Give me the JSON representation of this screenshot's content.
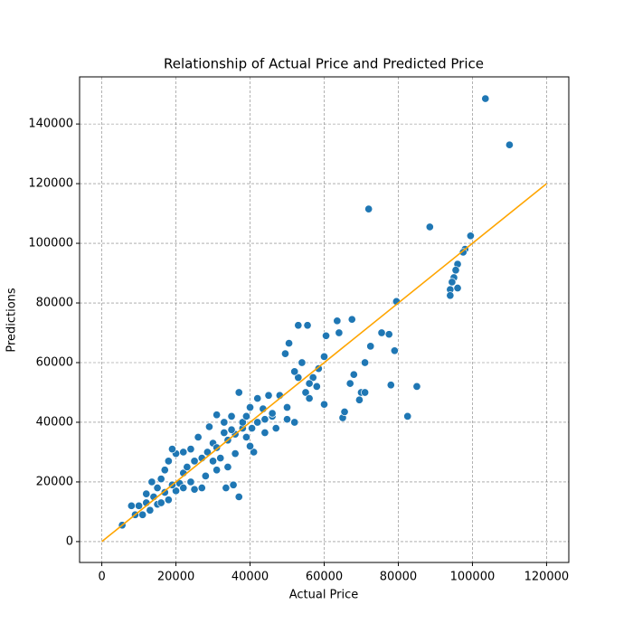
{
  "chart_data": {
    "type": "scatter",
    "title": "Relationship of Actual Price and Predicted Price",
    "x_label": "Actual Price",
    "y_label": "Predictions",
    "xlim": [
      -6000,
      126000
    ],
    "ylim": [
      -7000,
      155800
    ],
    "xticks": [
      0,
      20000,
      40000,
      60000,
      80000,
      100000,
      120000
    ],
    "yticks": [
      0,
      20000,
      40000,
      60000,
      80000,
      100000,
      120000,
      140000
    ],
    "grid": true,
    "points": {
      "color": "#1f77b4",
      "x": [
        5500,
        37000,
        72000,
        88500,
        103500,
        110000,
        99500,
        98000,
        97500,
        96000,
        95500,
        95000,
        94500,
        94000,
        94000,
        96000,
        79500,
        82500,
        85000,
        78000,
        79000,
        77500,
        75500,
        72500,
        71000,
        70000,
        69500,
        71000,
        68000,
        67000,
        65000,
        65500,
        64000,
        63500,
        67500,
        60500,
        53000,
        55500,
        50500,
        49500,
        60000,
        60000,
        58500,
        57000,
        55000,
        56000,
        52000,
        50000,
        50000,
        48000,
        45000,
        42000,
        43500,
        40000,
        41000,
        40000,
        37000,
        35000,
        33000,
        31000,
        29000,
        30000,
        32000,
        34000,
        36000,
        35500,
        33500,
        31000,
        28000,
        27000,
        25000,
        26000,
        24000,
        22000,
        20000,
        19000,
        18000,
        17000,
        16000,
        15000,
        14000,
        12000,
        11000,
        10000,
        9000,
        8000,
        13000,
        15000,
        18000,
        20000,
        21000,
        22000,
        23000,
        25000,
        27000,
        28500,
        36000,
        38000,
        39000,
        42000,
        44000,
        46000,
        47000,
        53000,
        54000,
        52000,
        56000,
        58000,
        44000,
        38000,
        39000,
        40500,
        46000,
        30000,
        31000,
        34000,
        35000,
        33000,
        24000,
        22000,
        19000,
        17000,
        12000,
        13500,
        16000
      ],
      "values": [
        5500,
        15000,
        111500,
        105500,
        148500,
        133000,
        102500,
        98000,
        97000,
        93000,
        91000,
        88500,
        87000,
        84500,
        82500,
        85000,
        80500,
        42000,
        52000,
        52500,
        64000,
        69500,
        70000,
        65500,
        60000,
        50000,
        47500,
        50000,
        56000,
        53000,
        41500,
        43500,
        70000,
        74000,
        74500,
        69000,
        72500,
        72500,
        66500,
        63000,
        46000,
        62000,
        58000,
        55000,
        50000,
        48000,
        40000,
        41000,
        45000,
        49000,
        49000,
        48000,
        44500,
        45000,
        30000,
        32000,
        50000,
        42000,
        40000,
        42500,
        38500,
        33000,
        28000,
        25000,
        29500,
        19000,
        18000,
        24000,
        22000,
        18000,
        17500,
        35000,
        31000,
        30000,
        29500,
        31000,
        27000,
        24000,
        21000,
        18000,
        15000,
        13000,
        9000,
        12000,
        9000,
        12000,
        10500,
        12500,
        14000,
        17000,
        19500,
        23000,
        25000,
        27000,
        28000,
        30000,
        36000,
        38000,
        35000,
        40000,
        41000,
        42000,
        38000,
        55000,
        60000,
        57000,
        53000,
        52000,
        36500,
        40000,
        42000,
        38000,
        43000,
        27000,
        31500,
        34000,
        37500,
        36500,
        20000,
        18000,
        19000,
        16500,
        16000,
        20000,
        13000
      ]
    },
    "reference_line": {
      "color": "#ffa500",
      "x": [
        0,
        120000
      ],
      "values": [
        0,
        120000
      ]
    }
  }
}
